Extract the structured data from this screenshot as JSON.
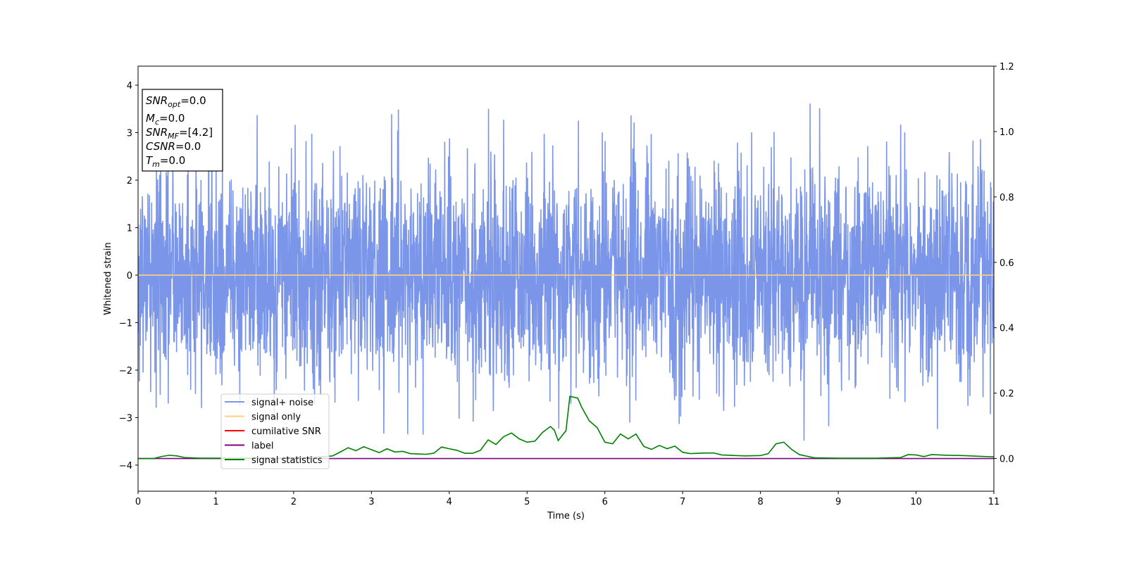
{
  "chart_data": {
    "type": "line",
    "xlabel": "Time (s)",
    "ylabel": "Whitened strain",
    "xlim": [
      0,
      11
    ],
    "ylim": [
      -4.55,
      4.4
    ],
    "y2lim": [
      -0.1,
      1.2
    ],
    "x_ticks": [
      "0",
      "1",
      "2",
      "3",
      "4",
      "5",
      "6",
      "7",
      "8",
      "9",
      "10",
      "11"
    ],
    "y_ticks": [
      "−4",
      "−3",
      "−2",
      "−1",
      "0",
      "1",
      "2",
      "3",
      "4"
    ],
    "y2_ticks": [
      "0.0",
      "0.2",
      "0.4",
      "0.6",
      "0.8",
      "1.0",
      "1.2"
    ],
    "grid": false,
    "legend_position": "lower-left",
    "legend": [
      {
        "label": "signal+ noise",
        "color": "#7b96e8"
      },
      {
        "label": "signal only",
        "color": "#ffd080"
      },
      {
        "label": "cumilative SNR",
        "color": "#ff0000"
      },
      {
        "label": "label",
        "color": "#800080"
      },
      {
        "label": "signal statistics",
        "color": "#008000"
      }
    ],
    "info_box": [
      {
        "base": "SNR",
        "sub": "opt",
        "value": "=0.0"
      },
      {
        "base": "M",
        "sub": "c",
        "value": "=0.0"
      },
      {
        "base": "SNR",
        "sub": "MF",
        "value": "=[4.2]"
      },
      {
        "base": "CSNR",
        "sub": "",
        "value": "=0.0"
      },
      {
        "base": "T",
        "sub": "m",
        "value": "=0.0"
      }
    ],
    "series": [
      {
        "name": "signal+ noise",
        "color": "#7b96e8",
        "kind": "noise",
        "envelope": {
          "upper_typical": 2.3,
          "lower_typical": -2.2,
          "max": 3.63,
          "min": -3.55
        }
      },
      {
        "name": "signal only",
        "color": "#ffd080",
        "x": [
          0,
          11
        ],
        "y": [
          0.0,
          0.0
        ]
      },
      {
        "name": "label",
        "color": "#800080",
        "axis": "right",
        "x": [
          0,
          11
        ],
        "y": [
          0.0,
          0.0
        ]
      },
      {
        "name": "signal statistics",
        "color": "#008000",
        "axis": "right",
        "x": [
          0.0,
          0.2,
          0.3,
          0.4,
          0.5,
          0.6,
          0.8,
          1.0,
          1.2,
          1.5,
          1.8,
          2.0,
          2.2,
          2.4,
          2.5,
          2.6,
          2.7,
          2.8,
          2.9,
          3.0,
          3.1,
          3.2,
          3.3,
          3.4,
          3.5,
          3.6,
          3.7,
          3.8,
          3.9,
          4.0,
          4.1,
          4.2,
          4.3,
          4.4,
          4.5,
          4.6,
          4.7,
          4.8,
          4.9,
          5.0,
          5.1,
          5.2,
          5.3,
          5.35,
          5.4,
          5.5,
          5.55,
          5.65,
          5.7,
          5.8,
          5.9,
          6.0,
          6.1,
          6.2,
          6.3,
          6.4,
          6.5,
          6.6,
          6.7,
          6.8,
          6.9,
          7.0,
          7.1,
          7.2,
          7.3,
          7.4,
          7.5,
          7.6,
          7.8,
          8.0,
          8.1,
          8.2,
          8.3,
          8.4,
          8.5,
          8.7,
          9.0,
          9.5,
          9.8,
          9.9,
          10.0,
          10.1,
          10.2,
          10.4,
          10.6,
          10.8,
          11.0
        ],
        "y": [
          0.0,
          0.0,
          0.006,
          0.01,
          0.008,
          0.003,
          0.001,
          0.001,
          0.001,
          0.001,
          0.001,
          0.002,
          0.003,
          0.006,
          0.008,
          0.02,
          0.033,
          0.024,
          0.036,
          0.027,
          0.018,
          0.03,
          0.02,
          0.022,
          0.015,
          0.014,
          0.013,
          0.016,
          0.035,
          0.03,
          0.025,
          0.016,
          0.016,
          0.025,
          0.057,
          0.043,
          0.067,
          0.078,
          0.06,
          0.05,
          0.053,
          0.08,
          0.098,
          0.087,
          0.055,
          0.085,
          0.19,
          0.185,
          0.158,
          0.115,
          0.095,
          0.05,
          0.045,
          0.075,
          0.06,
          0.075,
          0.037,
          0.028,
          0.04,
          0.03,
          0.038,
          0.019,
          0.015,
          0.016,
          0.017,
          0.017,
          0.011,
          0.01,
          0.008,
          0.009,
          0.015,
          0.045,
          0.05,
          0.028,
          0.012,
          0.002,
          0.001,
          0.001,
          0.003,
          0.012,
          0.011,
          0.006,
          0.012,
          0.01,
          0.009,
          0.007,
          0.005
        ]
      }
    ]
  }
}
